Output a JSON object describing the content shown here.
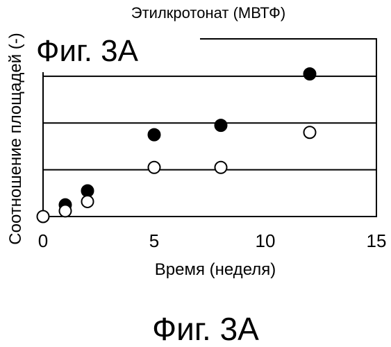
{
  "chart_data": {
    "type": "scatter",
    "title": "Этилкротонат (МВТФ)",
    "inset_label": "Фиг. 3А",
    "xlabel": "Время (неделя)",
    "ylabel": "Соотношение площадей (-)",
    "xlim": [
      0,
      15
    ],
    "ylim": [
      0,
      3.8
    ],
    "x_ticks": [
      "0",
      "5",
      "10",
      "15"
    ],
    "grid": "horizontal",
    "series": [
      {
        "marker": "filled-circle",
        "color": "#000000",
        "x": [
          1,
          2,
          5,
          8,
          12
        ],
        "y": [
          0.25,
          0.55,
          1.75,
          1.95,
          3.05
        ]
      },
      {
        "marker": "open-circle",
        "color": "#000000",
        "x": [
          0,
          1,
          2,
          5,
          8,
          12
        ],
        "y": [
          0.0,
          0.12,
          0.32,
          1.05,
          1.05,
          1.8
        ]
      }
    ]
  },
  "caption": "Фиг. 3А"
}
